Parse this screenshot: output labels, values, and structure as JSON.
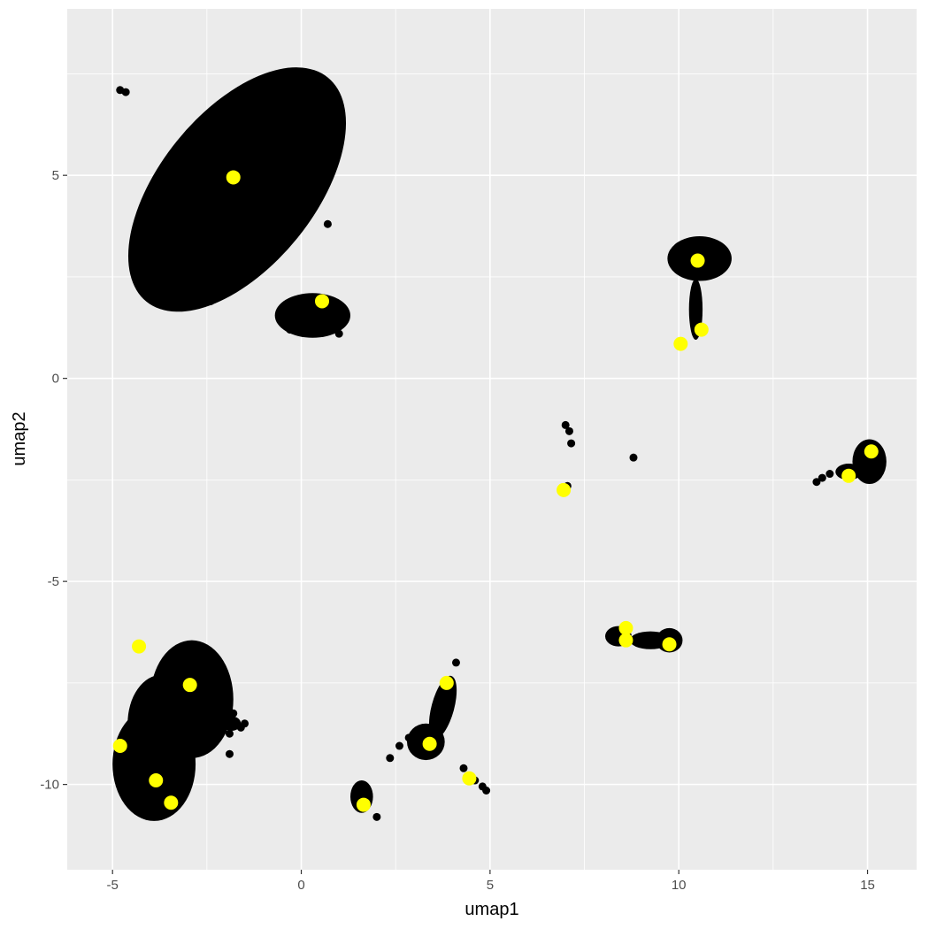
{
  "chart_data": {
    "type": "scatter",
    "title": "",
    "xlabel": "umap1",
    "ylabel": "umap2",
    "xlim": [
      -6.2,
      16.3
    ],
    "ylim": [
      -12.1,
      9.1
    ],
    "x_ticks": [
      -5,
      0,
      5,
      10,
      15
    ],
    "x_tick_labels": [
      "-5",
      "0",
      "5",
      "10",
      "15"
    ],
    "y_ticks": [
      5,
      0,
      -5,
      -10
    ],
    "y_tick_labels": [
      "5",
      "0",
      "-5",
      "-10"
    ],
    "grid": true,
    "legend": "none",
    "colors": {
      "panel_background": "#ebebeb",
      "grid": "#ffffff",
      "cells": "#000000",
      "highlighted": "#ffff00"
    },
    "clusters": [
      {
        "shape": "ellipse",
        "center": [
          -1.7,
          4.65
        ],
        "radii": [
          2.05,
          3.55
        ],
        "angle_deg": 39
      },
      {
        "shape": "ellipse",
        "center": [
          0.3,
          1.55
        ],
        "radii": [
          1.0,
          0.55
        ],
        "angle_deg": 0
      },
      {
        "shape": "ellipse",
        "center": [
          10.55,
          2.95
        ],
        "radii": [
          0.85,
          0.55
        ],
        "angle_deg": 0
      },
      {
        "shape": "ellipse",
        "center": [
          10.45,
          1.7
        ],
        "radii": [
          0.18,
          0.75
        ],
        "angle_deg": 0
      },
      {
        "shape": "ellipse",
        "center": [
          15.05,
          -2.05
        ],
        "radii": [
          0.45,
          0.55
        ],
        "angle_deg": 0
      },
      {
        "shape": "ellipse",
        "center": [
          14.5,
          -2.3
        ],
        "radii": [
          0.35,
          0.2
        ],
        "angle_deg": 0
      },
      {
        "shape": "ellipse",
        "center": [
          8.4,
          -6.35
        ],
        "radii": [
          0.35,
          0.25
        ],
        "angle_deg": 0
      },
      {
        "shape": "ellipse",
        "center": [
          9.25,
          -6.45
        ],
        "radii": [
          0.55,
          0.22
        ],
        "angle_deg": 0
      },
      {
        "shape": "ellipse",
        "center": [
          9.75,
          -6.45
        ],
        "radii": [
          0.35,
          0.3
        ],
        "angle_deg": 0
      },
      {
        "shape": "ellipse",
        "center": [
          -2.9,
          -7.9
        ],
        "radii": [
          1.1,
          1.45
        ],
        "angle_deg": 0
      },
      {
        "shape": "ellipse",
        "center": [
          -3.9,
          -9.5
        ],
        "radii": [
          1.1,
          1.4
        ],
        "angle_deg": 0
      },
      {
        "shape": "ellipse",
        "center": [
          -3.7,
          -8.5
        ],
        "radii": [
          0.9,
          1.2
        ],
        "angle_deg": 0
      },
      {
        "shape": "ellipse",
        "center": [
          3.3,
          -8.95
        ],
        "radii": [
          0.5,
          0.45
        ],
        "angle_deg": 0
      },
      {
        "shape": "ellipse",
        "center": [
          3.75,
          -8.1
        ],
        "radii": [
          0.3,
          0.8
        ],
        "angle_deg": 15
      },
      {
        "shape": "ellipse",
        "center": [
          1.6,
          -10.3
        ],
        "radii": [
          0.3,
          0.4
        ],
        "angle_deg": 0
      },
      {
        "shape": "ellipse",
        "center": [
          -1.85,
          -8.5
        ],
        "radii": [
          0.25,
          0.18
        ],
        "angle_deg": 0
      }
    ],
    "points": [
      [
        -4.8,
        7.1
      ],
      [
        -4.65,
        7.05
      ],
      [
        -0.3,
        6.1
      ],
      [
        0.1,
        5.2
      ],
      [
        0.7,
        3.8
      ],
      [
        0.95,
        1.6
      ],
      [
        -2.4,
        1.9
      ],
      [
        1.0,
        1.1
      ],
      [
        -0.3,
        1.2
      ],
      [
        7.0,
        -1.15
      ],
      [
        7.1,
        -1.3
      ],
      [
        7.15,
        -1.6
      ],
      [
        8.8,
        -1.95
      ],
      [
        6.9,
        -2.8
      ],
      [
        7.05,
        -2.65
      ],
      [
        6.95,
        -2.7
      ],
      [
        13.65,
        -2.55
      ],
      [
        13.8,
        -2.45
      ],
      [
        14.0,
        -2.35
      ],
      [
        10.45,
        1.6
      ],
      [
        10.5,
        1.9
      ],
      [
        4.1,
        -7.0
      ],
      [
        4.3,
        -9.6
      ],
      [
        4.6,
        -9.9
      ],
      [
        4.8,
        -10.05
      ],
      [
        4.9,
        -10.15
      ],
      [
        2.35,
        -9.35
      ],
      [
        2.6,
        -9.05
      ],
      [
        2.85,
        -8.85
      ],
      [
        2.0,
        -10.8
      ],
      [
        -2.15,
        -8.45
      ],
      [
        -1.8,
        -8.25
      ],
      [
        -1.5,
        -8.5
      ],
      [
        -1.9,
        -8.75
      ],
      [
        -1.6,
        -8.6
      ],
      [
        -2.3,
        -8.7
      ],
      [
        -1.9,
        -9.25
      ]
    ],
    "highlighted": [
      [
        -1.8,
        4.95
      ],
      [
        0.55,
        1.9
      ],
      [
        10.5,
        2.9
      ],
      [
        10.6,
        1.2
      ],
      [
        10.05,
        0.85
      ],
      [
        15.1,
        -1.8
      ],
      [
        14.5,
        -2.4
      ],
      [
        6.95,
        -2.75
      ],
      [
        8.6,
        -6.15
      ],
      [
        8.6,
        -6.45
      ],
      [
        9.75,
        -6.55
      ],
      [
        -4.3,
        -6.6
      ],
      [
        -2.95,
        -7.55
      ],
      [
        -4.8,
        -9.05
      ],
      [
        -3.85,
        -9.9
      ],
      [
        -3.45,
        -10.45
      ],
      [
        3.85,
        -7.5
      ],
      [
        3.4,
        -9.0
      ],
      [
        4.45,
        -9.85
      ],
      [
        1.65,
        -10.5
      ]
    ]
  }
}
